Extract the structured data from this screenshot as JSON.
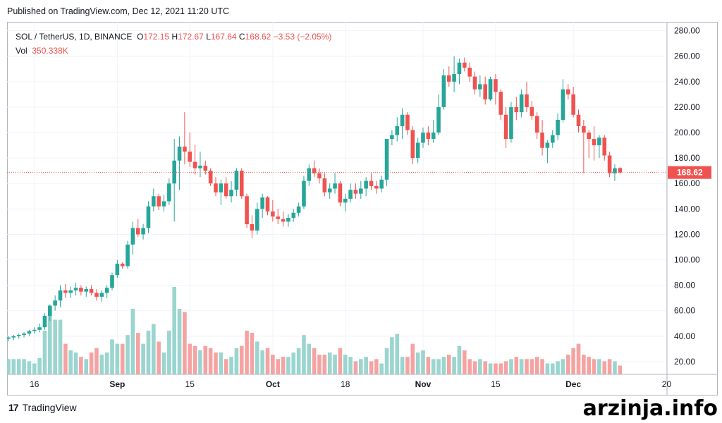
{
  "header": {
    "published": "Published on TradingView.com, Dec 12, 2021 11:20 UTC"
  },
  "legend": {
    "symbol": "SOL / TetherUS, 1D, BINANCE",
    "open_label": "O",
    "open": "172.15",
    "high_label": "H",
    "high": "172.67",
    "low_label": "L",
    "low": "167.64",
    "close_label": "C",
    "close": "168.62",
    "change": "−3.53 (−2.05%)",
    "vol_label": "Vol",
    "vol": "350.338K"
  },
  "footer": {
    "brand": "TradingView",
    "brand_mark": "17"
  },
  "watermark": "arzinja.info",
  "colors": {
    "up": "#26a69a",
    "down": "#ef5350",
    "up_vol": "#9ad5cf",
    "down_vol": "#f5a3a2",
    "grid": "#f0f3fa",
    "axis": "#b2b5be"
  },
  "chart_data": {
    "type": "candlestick",
    "x_ticks": [
      {
        "index": 5,
        "label": "16"
      },
      {
        "index": 21,
        "label": "Sep"
      },
      {
        "index": 35,
        "label": "15"
      },
      {
        "index": 51,
        "label": "Oct"
      },
      {
        "index": 65,
        "label": "18"
      },
      {
        "index": 80,
        "label": "Nov"
      },
      {
        "index": 94,
        "label": "15"
      },
      {
        "index": 109,
        "label": "Dec"
      },
      {
        "index": 127,
        "label": "20"
      }
    ],
    "y_ticks": [
      "280.00",
      "260.00",
      "240.00",
      "220.00",
      "200.00",
      "180.00",
      "160.00",
      "140.00",
      "120.00",
      "100.00",
      "80.00",
      "60.00",
      "40.00",
      "20.00"
    ],
    "ylim": [
      10,
      287
    ],
    "last_price": 168.62,
    "last_price_label": "168.62",
    "candles": [
      {
        "o": 38,
        "h": 40,
        "l": 36,
        "c": 39,
        "v": 14
      },
      {
        "o": 39,
        "h": 41,
        "l": 37,
        "c": 40,
        "v": 14
      },
      {
        "o": 40,
        "h": 42,
        "l": 38,
        "c": 41,
        "v": 14
      },
      {
        "o": 41,
        "h": 43,
        "l": 39,
        "c": 42,
        "v": 14
      },
      {
        "o": 42,
        "h": 45,
        "l": 40,
        "c": 44,
        "v": 12
      },
      {
        "o": 44,
        "h": 47,
        "l": 42,
        "c": 45,
        "v": 10
      },
      {
        "o": 45,
        "h": 50,
        "l": 43,
        "c": 47,
        "v": 15
      },
      {
        "o": 47,
        "h": 58,
        "l": 45,
        "c": 56,
        "v": 40
      },
      {
        "o": 56,
        "h": 65,
        "l": 52,
        "c": 64,
        "v": 60
      },
      {
        "o": 64,
        "h": 72,
        "l": 60,
        "c": 68,
        "v": 50
      },
      {
        "o": 68,
        "h": 80,
        "l": 63,
        "c": 76,
        "v": 50
      },
      {
        "o": 76,
        "h": 81,
        "l": 70,
        "c": 74,
        "v": 28
      },
      {
        "o": 74,
        "h": 79,
        "l": 70,
        "c": 76,
        "v": 22
      },
      {
        "o": 76,
        "h": 82,
        "l": 72,
        "c": 78,
        "v": 20
      },
      {
        "o": 78,
        "h": 80,
        "l": 72,
        "c": 75,
        "v": 16
      },
      {
        "o": 75,
        "h": 79,
        "l": 71,
        "c": 77,
        "v": 14
      },
      {
        "o": 77,
        "h": 80,
        "l": 72,
        "c": 74,
        "v": 20
      },
      {
        "o": 74,
        "h": 77,
        "l": 68,
        "c": 71,
        "v": 24
      },
      {
        "o": 71,
        "h": 76,
        "l": 67,
        "c": 74,
        "v": 18
      },
      {
        "o": 74,
        "h": 80,
        "l": 70,
        "c": 78,
        "v": 20
      },
      {
        "o": 78,
        "h": 90,
        "l": 76,
        "c": 88,
        "v": 32
      },
      {
        "o": 88,
        "h": 100,
        "l": 86,
        "c": 97,
        "v": 28
      },
      {
        "o": 97,
        "h": 98,
        "l": 93,
        "c": 95,
        "v": 28
      },
      {
        "o": 95,
        "h": 115,
        "l": 93,
        "c": 112,
        "v": 36
      },
      {
        "o": 112,
        "h": 130,
        "l": 104,
        "c": 125,
        "v": 60
      },
      {
        "o": 125,
        "h": 132,
        "l": 118,
        "c": 120,
        "v": 38
      },
      {
        "o": 120,
        "h": 128,
        "l": 116,
        "c": 125,
        "v": 28
      },
      {
        "o": 125,
        "h": 146,
        "l": 121,
        "c": 142,
        "v": 40
      },
      {
        "o": 142,
        "h": 156,
        "l": 138,
        "c": 150,
        "v": 46
      },
      {
        "o": 150,
        "h": 152,
        "l": 139,
        "c": 142,
        "v": 30
      },
      {
        "o": 142,
        "h": 151,
        "l": 138,
        "c": 146,
        "v": 20
      },
      {
        "o": 146,
        "h": 164,
        "l": 143,
        "c": 160,
        "v": 40
      },
      {
        "o": 160,
        "h": 195,
        "l": 130,
        "c": 178,
        "v": 80
      },
      {
        "o": 178,
        "h": 197,
        "l": 155,
        "c": 189,
        "v": 60
      },
      {
        "o": 189,
        "h": 216,
        "l": 175,
        "c": 185,
        "v": 57
      },
      {
        "o": 185,
        "h": 200,
        "l": 173,
        "c": 177,
        "v": 28
      },
      {
        "o": 177,
        "h": 190,
        "l": 167,
        "c": 172,
        "v": 26
      },
      {
        "o": 172,
        "h": 185,
        "l": 165,
        "c": 174,
        "v": 22
      },
      {
        "o": 174,
        "h": 178,
        "l": 167,
        "c": 170,
        "v": 26
      },
      {
        "o": 170,
        "h": 172,
        "l": 158,
        "c": 160,
        "v": 24
      },
      {
        "o": 160,
        "h": 165,
        "l": 150,
        "c": 153,
        "v": 20
      },
      {
        "o": 153,
        "h": 163,
        "l": 143,
        "c": 160,
        "v": 20
      },
      {
        "o": 160,
        "h": 165,
        "l": 148,
        "c": 150,
        "v": 14
      },
      {
        "o": 150,
        "h": 162,
        "l": 145,
        "c": 155,
        "v": 16
      },
      {
        "o": 155,
        "h": 172,
        "l": 150,
        "c": 170,
        "v": 24
      },
      {
        "o": 170,
        "h": 172,
        "l": 148,
        "c": 150,
        "v": 26
      },
      {
        "o": 150,
        "h": 152,
        "l": 125,
        "c": 128,
        "v": 40
      },
      {
        "o": 128,
        "h": 135,
        "l": 117,
        "c": 123,
        "v": 38
      },
      {
        "o": 123,
        "h": 145,
        "l": 120,
        "c": 140,
        "v": 30
      },
      {
        "o": 140,
        "h": 152,
        "l": 133,
        "c": 149,
        "v": 22
      },
      {
        "o": 149,
        "h": 150,
        "l": 135,
        "c": 138,
        "v": 24
      },
      {
        "o": 138,
        "h": 147,
        "l": 130,
        "c": 134,
        "v": 18
      },
      {
        "o": 134,
        "h": 140,
        "l": 128,
        "c": 132,
        "v": 14
      },
      {
        "o": 132,
        "h": 138,
        "l": 126,
        "c": 130,
        "v": 16
      },
      {
        "o": 130,
        "h": 136,
        "l": 126,
        "c": 133,
        "v": 16
      },
      {
        "o": 133,
        "h": 140,
        "l": 130,
        "c": 137,
        "v": 20
      },
      {
        "o": 137,
        "h": 145,
        "l": 134,
        "c": 142,
        "v": 24
      },
      {
        "o": 142,
        "h": 166,
        "l": 140,
        "c": 162,
        "v": 36
      },
      {
        "o": 162,
        "h": 175,
        "l": 158,
        "c": 172,
        "v": 28
      },
      {
        "o": 172,
        "h": 178,
        "l": 165,
        "c": 168,
        "v": 24
      },
      {
        "o": 168,
        "h": 172,
        "l": 160,
        "c": 164,
        "v": 18
      },
      {
        "o": 164,
        "h": 168,
        "l": 150,
        "c": 153,
        "v": 18
      },
      {
        "o": 153,
        "h": 160,
        "l": 148,
        "c": 156,
        "v": 20
      },
      {
        "o": 156,
        "h": 168,
        "l": 152,
        "c": 160,
        "v": 18
      },
      {
        "o": 160,
        "h": 162,
        "l": 142,
        "c": 145,
        "v": 24
      },
      {
        "o": 145,
        "h": 152,
        "l": 138,
        "c": 148,
        "v": 18
      },
      {
        "o": 148,
        "h": 160,
        "l": 145,
        "c": 155,
        "v": 16
      },
      {
        "o": 155,
        "h": 160,
        "l": 148,
        "c": 152,
        "v": 12
      },
      {
        "o": 152,
        "h": 162,
        "l": 148,
        "c": 156,
        "v": 14
      },
      {
        "o": 156,
        "h": 165,
        "l": 150,
        "c": 162,
        "v": 16
      },
      {
        "o": 162,
        "h": 168,
        "l": 155,
        "c": 158,
        "v": 12
      },
      {
        "o": 158,
        "h": 162,
        "l": 152,
        "c": 156,
        "v": 14
      },
      {
        "o": 156,
        "h": 166,
        "l": 153,
        "c": 163,
        "v": 10
      },
      {
        "o": 163,
        "h": 195,
        "l": 158,
        "c": 195,
        "v": 24
      },
      {
        "o": 195,
        "h": 202,
        "l": 190,
        "c": 198,
        "v": 34
      },
      {
        "o": 198,
        "h": 212,
        "l": 193,
        "c": 205,
        "v": 37
      },
      {
        "o": 205,
        "h": 219,
        "l": 195,
        "c": 214,
        "v": 16
      },
      {
        "o": 214,
        "h": 216,
        "l": 198,
        "c": 202,
        "v": 16
      },
      {
        "o": 202,
        "h": 205,
        "l": 175,
        "c": 180,
        "v": 28
      },
      {
        "o": 180,
        "h": 196,
        "l": 176,
        "c": 192,
        "v": 20
      },
      {
        "o": 192,
        "h": 204,
        "l": 188,
        "c": 200,
        "v": 22
      },
      {
        "o": 200,
        "h": 205,
        "l": 190,
        "c": 195,
        "v": 16
      },
      {
        "o": 195,
        "h": 210,
        "l": 192,
        "c": 200,
        "v": 14
      },
      {
        "o": 200,
        "h": 230,
        "l": 198,
        "c": 220,
        "v": 14
      },
      {
        "o": 220,
        "h": 250,
        "l": 218,
        "c": 245,
        "v": 16
      },
      {
        "o": 245,
        "h": 252,
        "l": 236,
        "c": 240,
        "v": 18
      },
      {
        "o": 240,
        "h": 260,
        "l": 232,
        "c": 246,
        "v": 16
      },
      {
        "o": 246,
        "h": 258,
        "l": 238,
        "c": 255,
        "v": 26
      },
      {
        "o": 255,
        "h": 259,
        "l": 248,
        "c": 251,
        "v": 22
      },
      {
        "o": 251,
        "h": 255,
        "l": 240,
        "c": 244,
        "v": 14
      },
      {
        "o": 244,
        "h": 248,
        "l": 230,
        "c": 234,
        "v": 12
      },
      {
        "o": 234,
        "h": 245,
        "l": 228,
        "c": 238,
        "v": 14
      },
      {
        "o": 238,
        "h": 244,
        "l": 222,
        "c": 226,
        "v": 12
      },
      {
        "o": 226,
        "h": 244,
        "l": 225,
        "c": 242,
        "v": 10
      },
      {
        "o": 242,
        "h": 246,
        "l": 222,
        "c": 232,
        "v": 10
      },
      {
        "o": 232,
        "h": 234,
        "l": 210,
        "c": 214,
        "v": 10
      },
      {
        "o": 214,
        "h": 220,
        "l": 188,
        "c": 195,
        "v": 12
      },
      {
        "o": 195,
        "h": 224,
        "l": 192,
        "c": 220,
        "v": 14
      },
      {
        "o": 220,
        "h": 228,
        "l": 210,
        "c": 216,
        "v": 16
      },
      {
        "o": 216,
        "h": 234,
        "l": 212,
        "c": 230,
        "v": 14
      },
      {
        "o": 230,
        "h": 240,
        "l": 216,
        "c": 220,
        "v": 14
      },
      {
        "o": 220,
        "h": 225,
        "l": 210,
        "c": 213,
        "v": 14
      },
      {
        "o": 213,
        "h": 216,
        "l": 195,
        "c": 200,
        "v": 16
      },
      {
        "o": 200,
        "h": 210,
        "l": 182,
        "c": 188,
        "v": 14
      },
      {
        "o": 188,
        "h": 194,
        "l": 176,
        "c": 192,
        "v": 10
      },
      {
        "o": 192,
        "h": 202,
        "l": 188,
        "c": 198,
        "v": 10
      },
      {
        "o": 198,
        "h": 215,
        "l": 194,
        "c": 210,
        "v": 12
      },
      {
        "o": 210,
        "h": 242,
        "l": 208,
        "c": 234,
        "v": 14
      },
      {
        "o": 234,
        "h": 238,
        "l": 226,
        "c": 230,
        "v": 18
      },
      {
        "o": 230,
        "h": 236,
        "l": 212,
        "c": 214,
        "v": 24
      },
      {
        "o": 214,
        "h": 218,
        "l": 200,
        "c": 205,
        "v": 28
      },
      {
        "o": 205,
        "h": 210,
        "l": 168,
        "c": 200,
        "v": 18
      },
      {
        "o": 200,
        "h": 202,
        "l": 180,
        "c": 195,
        "v": 16
      },
      {
        "o": 195,
        "h": 205,
        "l": 178,
        "c": 190,
        "v": 14
      },
      {
        "o": 190,
        "h": 198,
        "l": 180,
        "c": 196,
        "v": 14
      },
      {
        "o": 196,
        "h": 198,
        "l": 178,
        "c": 182,
        "v": 12
      },
      {
        "o": 182,
        "h": 185,
        "l": 165,
        "c": 168,
        "v": 14
      },
      {
        "o": 168,
        "h": 175,
        "l": 162,
        "c": 172,
        "v": 12
      },
      {
        "o": 172.15,
        "h": 172.67,
        "l": 167.64,
        "c": 168.62,
        "v": 8
      }
    ]
  }
}
